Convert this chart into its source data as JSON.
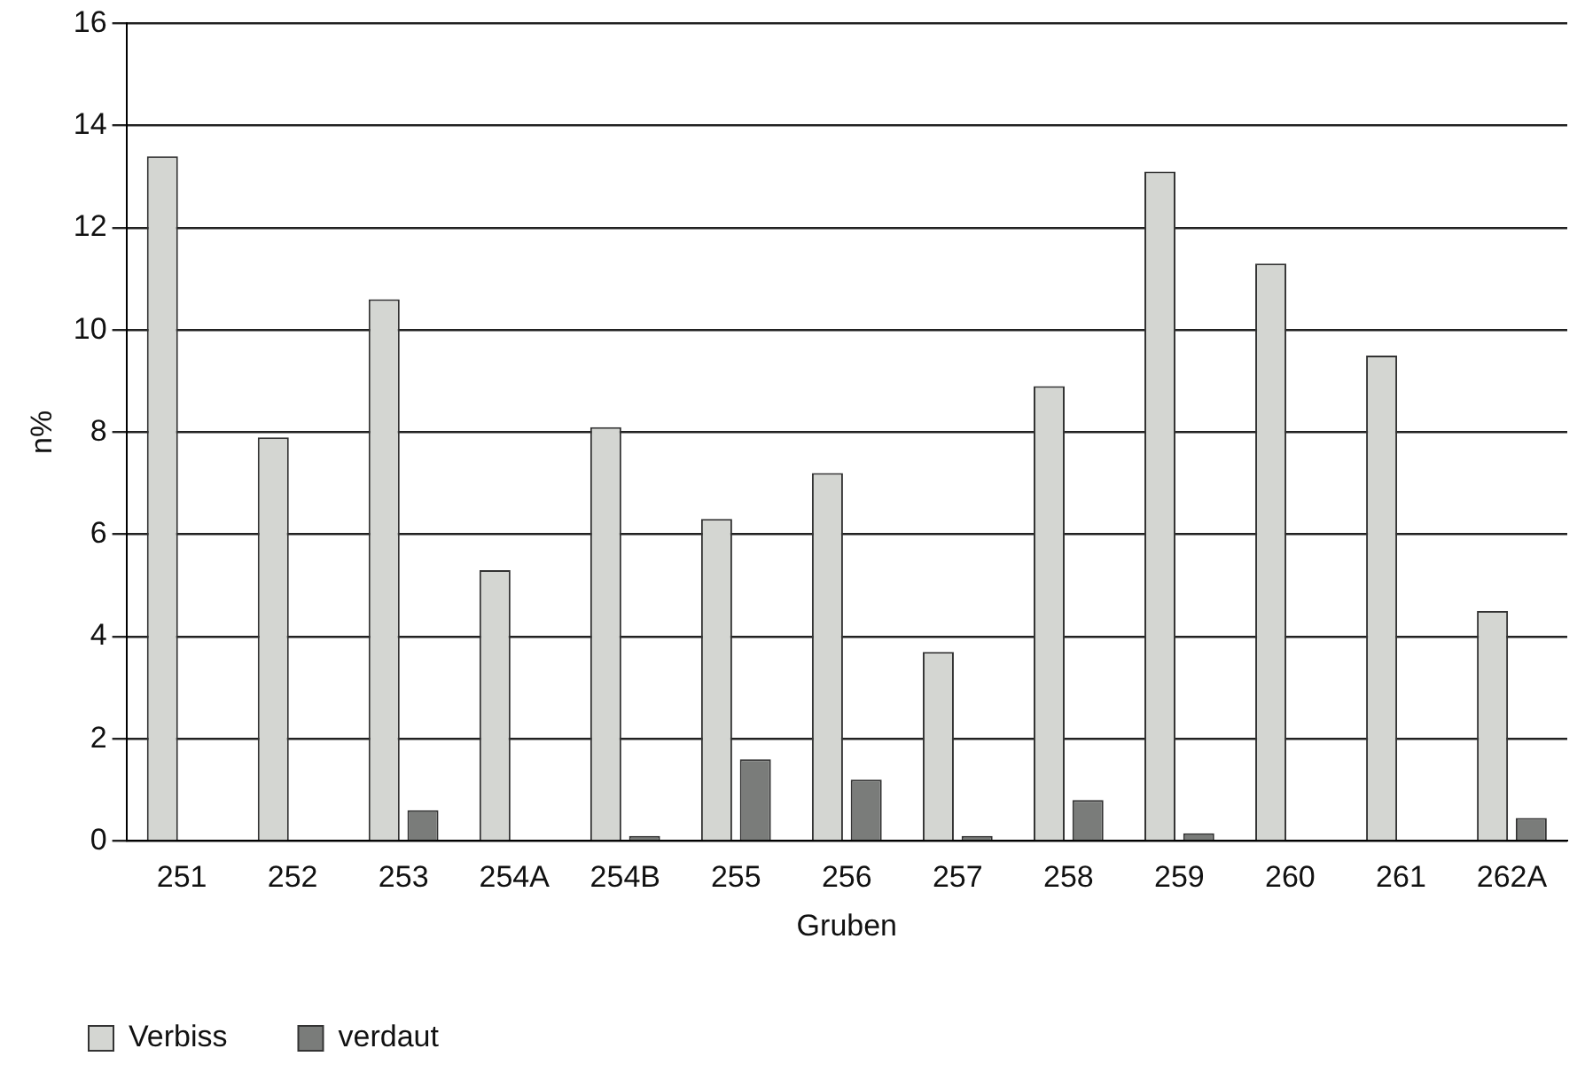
{
  "chart_data": {
    "type": "bar",
    "xlabel": "Gruben",
    "ylabel": "n%",
    "categories": [
      "251",
      "252",
      "253",
      "254A",
      "254B",
      "255",
      "256",
      "257",
      "258",
      "259",
      "260",
      "261",
      "262A"
    ],
    "series": [
      {
        "name": "Verbiss",
        "color": "#d4d6d2",
        "values": [
          13.4,
          7.9,
          10.6,
          5.3,
          8.1,
          6.3,
          7.2,
          3.7,
          8.9,
          13.1,
          11.3,
          9.5,
          4.5
        ]
      },
      {
        "name": "verdaut",
        "color": "#7a7c7a",
        "values": [
          0,
          0,
          0.6,
          0,
          0.1,
          1.6,
          1.2,
          0.1,
          0.8,
          0.15,
          0,
          0,
          0.45
        ]
      }
    ],
    "ylim": [
      0,
      16
    ],
    "yticks": [
      0,
      2,
      4,
      6,
      8,
      10,
      12,
      14,
      16
    ],
    "grid": "y",
    "legend": "bottom left"
  }
}
